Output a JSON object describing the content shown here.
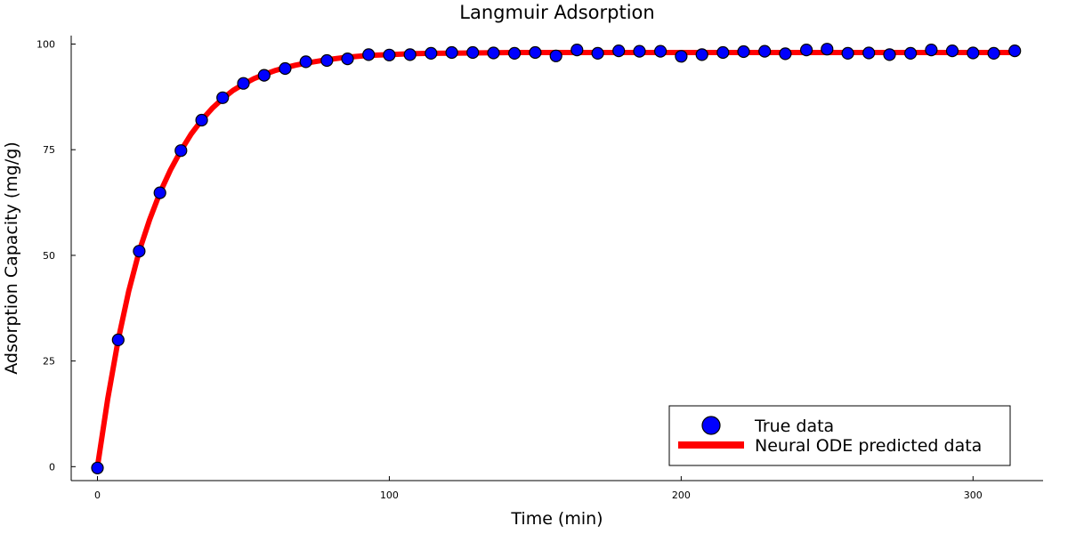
{
  "chart_data": {
    "type": "scatter",
    "title": "Langmuir Adsorption",
    "xlabel": "Time (min)",
    "ylabel": "Adsorption Capacity (mg/g)",
    "xlim": [
      -9,
      324
    ],
    "ylim": [
      -3.3,
      102
    ],
    "x_ticks": [
      0,
      100,
      200,
      300
    ],
    "y_ticks": [
      0,
      25,
      50,
      75,
      100
    ],
    "grid": false,
    "legend_position": "bottom-right",
    "colors": {
      "scatter_fill": "#0000ff",
      "scatter_stroke": "#000000",
      "line": "#ff0000"
    },
    "series": [
      {
        "name": "True data",
        "kind": "scatter",
        "x": [
          0,
          7.1,
          14.3,
          21.4,
          28.6,
          35.7,
          42.9,
          50,
          57.1,
          64.3,
          71.4,
          78.6,
          85.7,
          92.9,
          100,
          107.1,
          114.3,
          121.4,
          128.6,
          135.7,
          142.9,
          150,
          157.1,
          164.3,
          171.4,
          178.6,
          185.7,
          192.9,
          200,
          207.1,
          214.3,
          221.4,
          228.6,
          235.7,
          242.9,
          250,
          257.1,
          264.3,
          271.4,
          278.6,
          285.7,
          292.9,
          300,
          307.1,
          314.3
        ],
        "y": [
          -0.3,
          30,
          51,
          64.8,
          74.8,
          82,
          87.3,
          90.7,
          92.6,
          94.2,
          95.8,
          96.1,
          96.5,
          97.5,
          97.4,
          97.5,
          97.8,
          98,
          98,
          97.9,
          97.8,
          98,
          97.2,
          98.6,
          97.8,
          98.4,
          98.3,
          98.3,
          97.1,
          97.5,
          98,
          98.2,
          98.3,
          97.7,
          98.6,
          98.8,
          97.8,
          97.9,
          97.5,
          97.8,
          98.6,
          98.4,
          97.9,
          97.8,
          98.4
        ]
      },
      {
        "name": "Neural ODE predicted data",
        "kind": "line",
        "x": [
          0,
          3.5,
          7.1,
          10.7,
          14.3,
          17.9,
          21.4,
          25,
          28.6,
          32.1,
          35.7,
          39.3,
          42.9,
          46.4,
          50,
          53.6,
          57.1,
          60.7,
          64.3,
          67.9,
          71.4,
          78.6,
          85.7,
          92.9,
          100,
          107.1,
          114.3,
          128.6,
          142.9,
          157.1,
          171.4,
          200,
          250,
          314.3
        ],
        "y": [
          0,
          16,
          30,
          41.5,
          51,
          58.5,
          64.8,
          70.2,
          74.8,
          78.7,
          82,
          84.8,
          87.1,
          89,
          90.5,
          91.8,
          92.8,
          93.7,
          94.4,
          95,
          95.5,
          96.3,
          96.9,
          97.3,
          97.5,
          97.7,
          97.8,
          97.9,
          98,
          98,
          98,
          98,
          98,
          98
        ]
      }
    ]
  }
}
